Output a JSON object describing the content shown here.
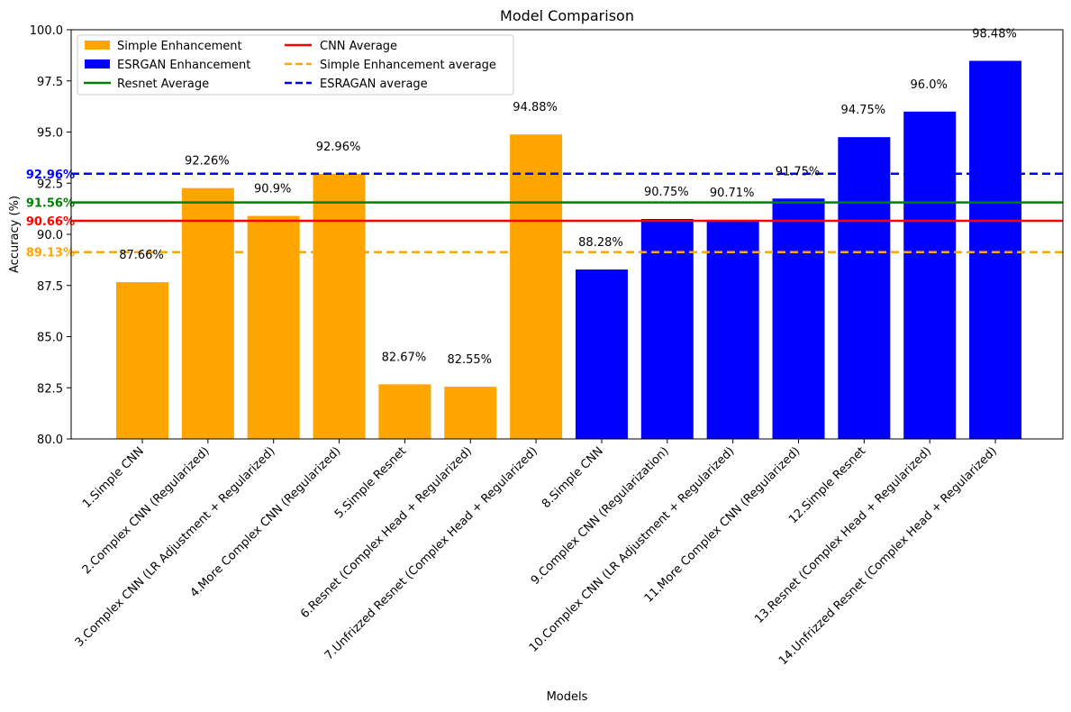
{
  "chart_data": {
    "type": "bar",
    "title": "Model Comparison",
    "xlabel": "Models",
    "ylabel": "Accuracy (%)",
    "ylim": [
      80,
      100
    ],
    "yticks": [
      80.0,
      82.5,
      85.0,
      87.5,
      90.0,
      92.5,
      95.0,
      97.5,
      100.0
    ],
    "ytick_labels": [
      "80.0",
      "82.5",
      "85.0",
      "87.5",
      "90.0",
      "92.5",
      "95.0",
      "97.5",
      "100.0"
    ],
    "grid": false,
    "legend_position": "top-left",
    "categories": [
      "1.Simple CNN",
      "2.Complex CNN (Regularized)",
      "3.Complex CNN (LR Adjustment + Regularized)",
      "4.More Complex CNN (Regularized)",
      "5.Simple Resnet",
      "6.Resnet (Complex Head + Regularized)",
      "7.Unfrizzed Resnet (Complex Head + Regularized)",
      "8.Simple CNN",
      "9.Complex CNN (Regularization)",
      "10.Complex CNN (LR Adjustment + Regularized)",
      "11.More Complex CNN (Regularized)",
      "12.Simple Resnet",
      "13.Resnet (Complex Head + Regularized)",
      "14.Unfrizzed Resnet (Complex Head + Regularized)"
    ],
    "values": [
      87.66,
      92.26,
      90.9,
      92.96,
      82.67,
      82.55,
      94.88,
      88.28,
      90.75,
      90.71,
      91.75,
      94.75,
      96.0,
      98.48
    ],
    "data_labels": [
      "87.66%",
      "92.26%",
      "90.9%",
      "92.96%",
      "82.67%",
      "82.55%",
      "94.88%",
      "88.28%",
      "90.75%",
      "90.71%",
      "91.75%",
      "94.75%",
      "96.0%",
      "98.48%"
    ],
    "bar_groups": [
      "Simple Enhancement",
      "Simple Enhancement",
      "Simple Enhancement",
      "Simple Enhancement",
      "Simple Enhancement",
      "Simple Enhancement",
      "Simple Enhancement",
      "ESRGAN Enhancement",
      "ESRGAN Enhancement",
      "ESRGAN Enhancement",
      "ESRGAN Enhancement",
      "ESRGAN Enhancement",
      "ESRGAN Enhancement",
      "ESRGAN Enhancement"
    ],
    "series": [
      {
        "name": "Simple Enhancement",
        "color": "#ffa500",
        "kind": "bar"
      },
      {
        "name": "ESRGAN Enhancement",
        "color": "#0000ff",
        "kind": "bar"
      }
    ],
    "reference_lines": [
      {
        "name": "Resnet Average",
        "value": 91.56,
        "label": "91.56%",
        "color": "#008000",
        "style": "solid"
      },
      {
        "name": "CNN Average",
        "value": 90.66,
        "label": "90.66%",
        "color": "#ff0000",
        "style": "solid"
      },
      {
        "name": "Simple Enhancement average",
        "value": 89.13,
        "label": "89.13%",
        "color": "#ffa500",
        "style": "dashed"
      },
      {
        "name": "ESRAGAN average",
        "value": 92.96,
        "label": "92.96%",
        "color": "#0000ff",
        "style": "dashed"
      }
    ],
    "legend": [
      {
        "label": "Simple Enhancement",
        "kind": "patch",
        "color": "#ffa500"
      },
      {
        "label": "ESRGAN Enhancement",
        "kind": "patch",
        "color": "#0000ff"
      },
      {
        "label": "Resnet Average",
        "kind": "line",
        "color": "#008000",
        "style": "solid"
      },
      {
        "label": "CNN Average",
        "kind": "line",
        "color": "#ff0000",
        "style": "solid"
      },
      {
        "label": "Simple Enhancement average",
        "kind": "line",
        "color": "#ffa500",
        "style": "dashed"
      },
      {
        "label": "ESRAGAN average",
        "kind": "line",
        "color": "#0000ff",
        "style": "dashed"
      }
    ]
  }
}
